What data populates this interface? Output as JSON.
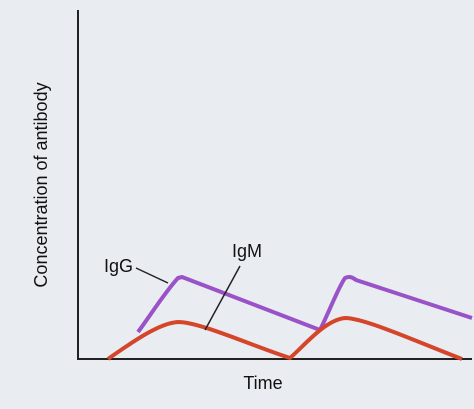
{
  "chart_data": {
    "type": "line",
    "y_label": "Concentration of antibody",
    "x_label": "Time",
    "curve_labels": [
      "IgG",
      "IgM"
    ]
  }
}
